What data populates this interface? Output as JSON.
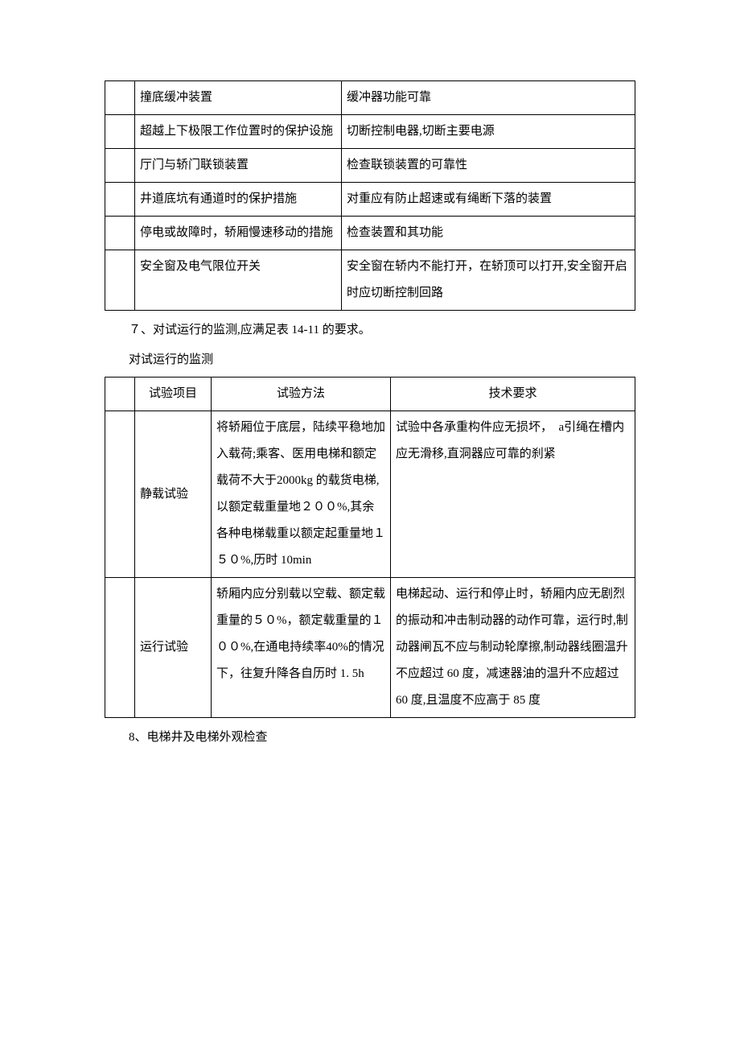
{
  "table1": {
    "rows": [
      {
        "c1": "",
        "c2": "撞底缓冲装置",
        "c3": "缓冲器功能可靠"
      },
      {
        "c1": "",
        "c2": "超越上下极限工作位置时的保护设施",
        "c3": "切断控制电器,切断主要电源"
      },
      {
        "c1": "",
        "c2": "厅门与轿门联锁装置",
        "c3": "检查联锁装置的可靠性"
      },
      {
        "c1": "",
        "c2": "井道底坑有通道时的保护措施",
        "c3": "对重应有防止超速或有绳断下落的装置"
      },
      {
        "c1": "",
        "c2": "停电或故障时，轿厢慢速移动的措施",
        "c3": "检查装置和其功能"
      },
      {
        "c1": "",
        "c2": "安全窗及电气限位开关",
        "c3": "安全窗在轿内不能打开，在轿顶可以打开,安全窗开启时应切断控制回路"
      }
    ]
  },
  "para7": "７、对试运行的监测,应满足表 14-11 的要求。",
  "para7b": "对试运行的监测",
  "table2": {
    "header": {
      "c1": "",
      "c2": "试验项目",
      "c3": "试验方法",
      "c4": "技术要求"
    },
    "rows": [
      {
        "c1": "",
        "c2": "静载试验",
        "c3": "将轿厢位于底层，陆续平稳地加入载荷;乘客、医用电梯和额定载荷不大于2000kg 的载货电梯,以额定载重量地２００%,其余各种电梯载重以额定起重量地１５０%,历时 10min",
        "c4": "试验中各承重构件应无损坏，　a引绳在槽内应无滑移,直洞器应可靠的刹紧"
      },
      {
        "c1": "",
        "c2": "运行试验",
        "c3": "轿厢内应分别载以空载、额定载重量的５０%，额定载重量的１００%,在通电持续率40%的情况下，往复升降各自历时 1. 5h",
        "c4": "电梯起动、运行和停止时，轿厢内应无剧烈的振动和冲击制动器的动作可靠，运行时,制动器闸瓦不应与制动轮摩擦,制动器线圈温升不应超过 60 度，减速器油的温升不应超过 60 度,且温度不应高于 85 度"
      }
    ]
  },
  "para8": "8、电梯井及电梯外观检查"
}
